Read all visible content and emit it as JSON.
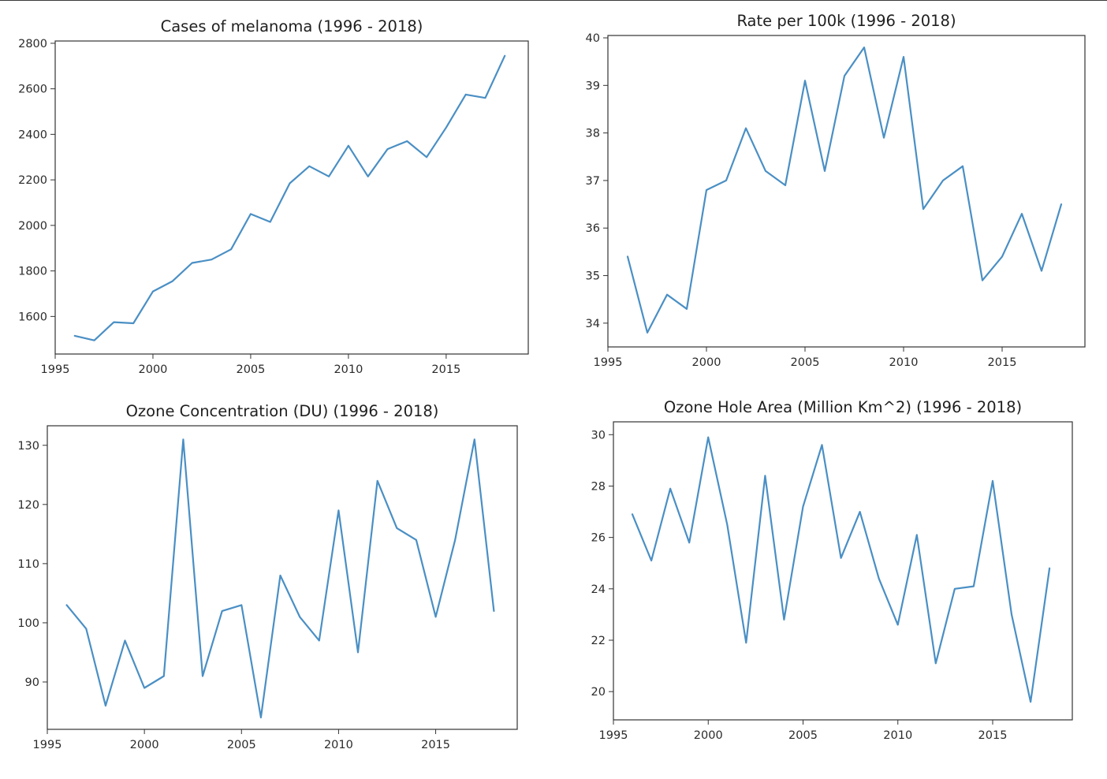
{
  "colors": {
    "series": "#4a8fc4",
    "axis": "#333333",
    "text": "#2b2b2b"
  },
  "chart_data": [
    {
      "type": "line",
      "title": "Cases of melanoma (1996 - 2018)",
      "xlabel": "",
      "ylabel": "",
      "x": [
        1996,
        1997,
        1998,
        1999,
        2000,
        2001,
        2002,
        2003,
        2004,
        2005,
        2006,
        2007,
        2008,
        2009,
        2010,
        2011,
        2012,
        2013,
        2014,
        2015,
        2016,
        2017,
        2018
      ],
      "series": [
        {
          "values": [
            1515,
            1495,
            1575,
            1570,
            1710,
            1755,
            1835,
            1850,
            1895,
            2050,
            2015,
            2185,
            2260,
            2215,
            2350,
            2215,
            2335,
            2370,
            2300,
            2430,
            2575,
            2560,
            2745
          ]
        }
      ],
      "xlim": [
        1995,
        2019.2
      ],
      "ylim": [
        1435,
        2810
      ],
      "xticks": [
        1995,
        2000,
        2005,
        2010,
        2015
      ],
      "yticks": [
        1600,
        1800,
        2000,
        2200,
        2400,
        2600,
        2800
      ],
      "grid": false
    },
    {
      "type": "line",
      "title": "Rate per 100k (1996 - 2018)",
      "xlabel": "",
      "ylabel": "",
      "x": [
        1996,
        1997,
        1998,
        1999,
        2000,
        2001,
        2002,
        2003,
        2004,
        2005,
        2006,
        2007,
        2008,
        2009,
        2010,
        2011,
        2012,
        2013,
        2014,
        2015,
        2016,
        2017,
        2018
      ],
      "series": [
        {
          "values": [
            35.4,
            33.8,
            34.6,
            34.3,
            36.8,
            37.0,
            38.1,
            37.2,
            36.9,
            39.1,
            37.2,
            39.2,
            39.8,
            37.9,
            39.6,
            36.4,
            37.0,
            37.3,
            34.9,
            35.4,
            36.3,
            35.1,
            36.5
          ]
        }
      ],
      "xlim": [
        1995,
        2019.2
      ],
      "ylim": [
        33.5,
        40.05
      ],
      "xticks": [
        1995,
        2000,
        2005,
        2010,
        2015
      ],
      "yticks": [
        34,
        35,
        36,
        37,
        38,
        39,
        40
      ],
      "grid": false
    },
    {
      "type": "line",
      "title": "Ozone Concentration (DU) (1996 - 2018)",
      "xlabel": "",
      "ylabel": "",
      "x": [
        1996,
        1997,
        1998,
        1999,
        2000,
        2001,
        2002,
        2003,
        2004,
        2005,
        2006,
        2007,
        2008,
        2009,
        2010,
        2011,
        2012,
        2013,
        2014,
        2015,
        2016,
        2017,
        2018
      ],
      "series": [
        {
          "values": [
            103,
            99,
            86,
            97,
            89,
            91,
            131,
            91,
            102,
            103,
            84,
            108,
            101,
            97,
            119,
            95,
            124,
            116,
            114,
            101,
            114,
            131,
            102
          ]
        }
      ],
      "xlim": [
        1995,
        2019.2
      ],
      "ylim": [
        82,
        133.3
      ],
      "xticks": [
        1995,
        2000,
        2005,
        2010,
        2015
      ],
      "yticks": [
        90,
        100,
        110,
        120,
        130
      ],
      "grid": false
    },
    {
      "type": "line",
      "title": "Ozone Hole Area (Million Km^2) (1996 - 2018)",
      "xlabel": "",
      "ylabel": "",
      "x": [
        1996,
        1997,
        1998,
        1999,
        2000,
        2001,
        2002,
        2003,
        2004,
        2005,
        2006,
        2007,
        2008,
        2009,
        2010,
        2011,
        2012,
        2013,
        2014,
        2015,
        2016,
        2017,
        2018
      ],
      "series": [
        {
          "values": [
            26.9,
            25.1,
            27.9,
            25.8,
            29.9,
            26.5,
            21.9,
            28.4,
            22.8,
            27.2,
            29.6,
            25.2,
            27.0,
            24.4,
            22.6,
            26.1,
            21.1,
            24.0,
            24.1,
            28.2,
            23.0,
            19.6,
            24.8
          ]
        }
      ],
      "xlim": [
        1995,
        2019.2
      ],
      "ylim": [
        18.9,
        30.5
      ],
      "xticks": [
        1995,
        2000,
        2005,
        2010,
        2015
      ],
      "yticks": [
        20,
        22,
        24,
        26,
        28,
        30
      ],
      "grid": false
    }
  ]
}
